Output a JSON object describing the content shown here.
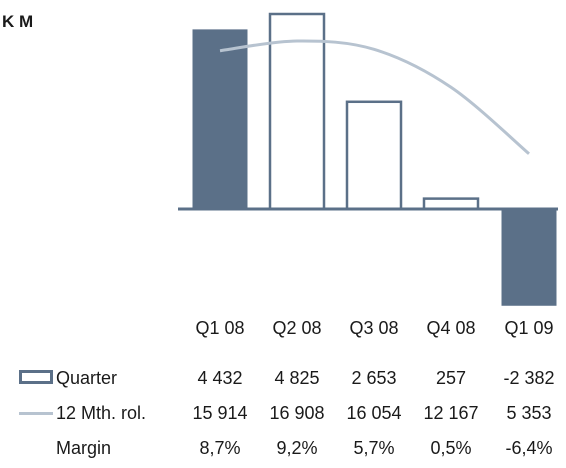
{
  "unit_label": "K M",
  "chart_data": {
    "type": "bar",
    "categories": [
      "Q1 08",
      "Q2 08",
      "Q3 08",
      "Q4 08",
      "Q1 09"
    ],
    "series": [
      {
        "name": "Quarter",
        "values": [
          4432,
          4825,
          2653,
          257,
          -2382
        ]
      },
      {
        "name": "12 Mth. rol.",
        "values": [
          15914,
          16908,
          16054,
          12167,
          5353
        ]
      }
    ],
    "margin": {
      "name": "Margin",
      "values": [
        "8,7%",
        "9,2%",
        "5,7%",
        "0,5%",
        "-6,4%"
      ]
    },
    "quarter_labels": [
      "4 432",
      "4 825",
      "2 653",
      "257",
      "-2 382"
    ],
    "rolling_labels": [
      "15 914",
      "16 908",
      "16 054",
      "12 167",
      "5 353"
    ],
    "bar_fill_pattern": [
      "filled",
      "outline",
      "outline",
      "outline",
      "filled"
    ],
    "colors": {
      "bar": "#5b7088",
      "line": "#b7c3d0",
      "axis": "#5b7088"
    }
  }
}
